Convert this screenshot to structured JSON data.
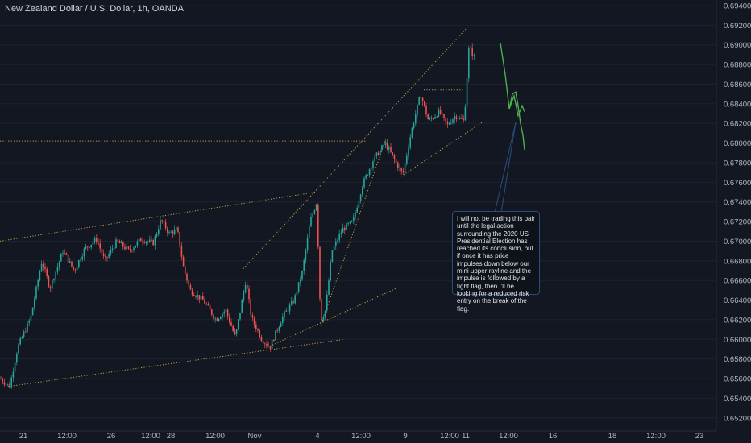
{
  "title": "New Zealand Dollar / U.S. Dollar, 1h, OANDA",
  "colors": {
    "up": "#26a69a",
    "down": "#ef5350",
    "drawing": "#c9a13f",
    "projection": "#4caf50",
    "grid": "#1e2230",
    "axis": "#2a2e39",
    "note_border": "#2a4d7e"
  },
  "chart_data": {
    "type": "candlestick",
    "title": "New Zealand Dollar / U.S. Dollar, 1h, OANDA",
    "y_ticks": [
      "0.69400",
      "0.69200",
      "0.69000",
      "0.68800",
      "0.68600",
      "0.68400",
      "0.68200",
      "0.68000",
      "0.67800",
      "0.67600",
      "0.67400",
      "0.67200",
      "0.67000",
      "0.66800",
      "0.66600",
      "0.66400",
      "0.66200",
      "0.66000",
      "0.65800",
      "0.65600",
      "0.65400",
      "0.65200"
    ],
    "ylim": [
      0.652,
      0.694
    ],
    "x_ticks": [
      "21",
      "12:00",
      "26",
      "12:00",
      "28",
      "12:00",
      "Nov",
      "4",
      "12:00",
      "9",
      "12:00",
      "11",
      "12:00",
      "16",
      "18",
      "12:00",
      "23"
    ],
    "price_path": [
      [
        0,
        0.656
      ],
      [
        12,
        0.6552
      ],
      [
        22,
        0.6592
      ],
      [
        38,
        0.6622
      ],
      [
        52,
        0.668
      ],
      [
        62,
        0.6652
      ],
      [
        78,
        0.669
      ],
      [
        92,
        0.667
      ],
      [
        105,
        0.6692
      ],
      [
        120,
        0.6702
      ],
      [
        130,
        0.668
      ],
      [
        145,
        0.67
      ],
      [
        160,
        0.669
      ],
      [
        175,
        0.6702
      ],
      [
        190,
        0.6698
      ],
      [
        200,
        0.6722
      ],
      [
        210,
        0.6708
      ],
      [
        220,
        0.6712
      ],
      [
        228,
        0.6672
      ],
      [
        236,
        0.665
      ],
      [
        252,
        0.664
      ],
      [
        268,
        0.662
      ],
      [
        280,
        0.663
      ],
      [
        292,
        0.6602
      ],
      [
        305,
        0.666
      ],
      [
        312,
        0.6622
      ],
      [
        325,
        0.66
      ],
      [
        335,
        0.6592
      ],
      [
        350,
        0.6622
      ],
      [
        365,
        0.664
      ],
      [
        375,
        0.6668
      ],
      [
        385,
        0.672
      ],
      [
        393,
        0.674
      ],
      [
        398,
        0.6618
      ],
      [
        404,
        0.663
      ],
      [
        412,
        0.669
      ],
      [
        425,
        0.6712
      ],
      [
        438,
        0.672
      ],
      [
        450,
        0.6758
      ],
      [
        463,
        0.6782
      ],
      [
        478,
        0.68
      ],
      [
        490,
        0.6782
      ],
      [
        500,
        0.6768
      ],
      [
        510,
        0.681
      ],
      [
        522,
        0.685
      ],
      [
        532,
        0.6822
      ],
      [
        545,
        0.6832
      ],
      [
        555,
        0.6818
      ],
      [
        565,
        0.6828
      ],
      [
        576,
        0.6822
      ],
      [
        582,
        0.6898
      ],
      [
        590,
        0.6885
      ]
    ],
    "annotations": [
      {
        "type": "note",
        "text": "I will not be trading this pair until the legal action surrounding the 2020 US Presidential Election has reached its conclusion, but if once it has price impulses down below our mini upper rayline and the impulse is followed by a tight flag, then I'll be looking for a reduced risk entry on the break of the flag."
      }
    ],
    "trendlines": [
      {
        "style": "dotted",
        "from": [
          0,
          0.67
        ],
        "to": [
          392,
          0.675
        ]
      },
      {
        "style": "dotted",
        "from": [
          10,
          0.6552
        ],
        "to": [
          427,
          0.66
        ]
      },
      {
        "style": "dotted",
        "from": [
          0,
          0.6802
        ],
        "to": [
          455,
          0.6802
        ]
      },
      {
        "style": "dotted",
        "from": [
          302,
          0.6672
        ],
        "to": [
          578,
          0.6916
        ]
      },
      {
        "style": "dotted",
        "from": [
          332,
          0.6592
        ],
        "to": [
          492,
          0.6652
        ]
      },
      {
        "style": "dotted",
        "from": [
          398,
          0.6614
        ],
        "to": [
          478,
          0.6802
        ]
      },
      {
        "style": "dotted",
        "from": [
          498,
          0.6766
        ],
        "to": [
          600,
          0.6822
        ]
      },
      {
        "style": "dotted",
        "from": [
          526,
          0.6854
        ],
        "to": [
          577,
          0.6854
        ]
      }
    ],
    "projection": [
      [
        621,
        0.6902
      ],
      [
        627,
        0.687
      ],
      [
        632,
        0.6835
      ],
      [
        638,
        0.6848
      ],
      [
        643,
        0.6828
      ],
      [
        648,
        0.6838
      ],
      [
        651,
        0.6832
      ]
    ],
    "projection2": [
      [
        632,
        0.6835
      ],
      [
        636,
        0.685
      ],
      [
        640,
        0.6852
      ],
      [
        643,
        0.6838
      ],
      [
        646,
        0.682
      ],
      [
        649,
        0.6808
      ],
      [
        651,
        0.6793
      ]
    ]
  }
}
